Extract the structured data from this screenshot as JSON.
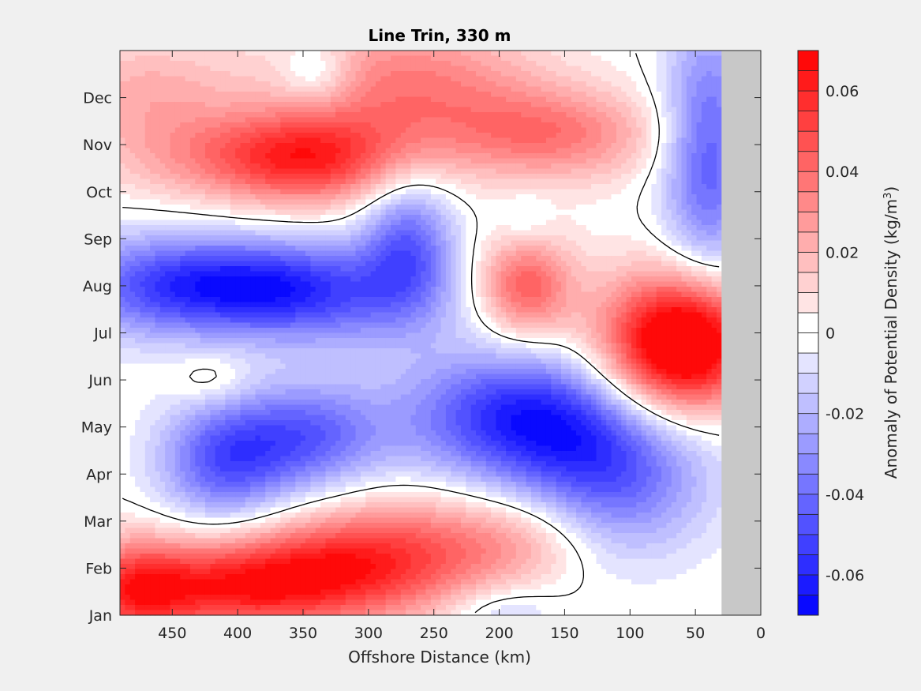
{
  "chart_data": {
    "type": "heatmap",
    "title": "Line Trin, 330 m",
    "xlabel": "Offshore Distance (km)",
    "xlim": [
      490,
      0
    ],
    "x_ticks": [
      450,
      400,
      350,
      300,
      250,
      200,
      150,
      100,
      50,
      0
    ],
    "y_ticks": [
      {
        "value": 1,
        "label": "Jan"
      },
      {
        "value": 2,
        "label": "Feb"
      },
      {
        "value": 3,
        "label": "Mar"
      },
      {
        "value": 4,
        "label": "Apr"
      },
      {
        "value": 5,
        "label": "May"
      },
      {
        "value": 6,
        "label": "Jun"
      },
      {
        "value": 7,
        "label": "Jul"
      },
      {
        "value": 8,
        "label": "Aug"
      },
      {
        "value": 9,
        "label": "Sep"
      },
      {
        "value": 10,
        "label": "Oct"
      },
      {
        "value": 11,
        "label": "Nov"
      },
      {
        "value": 12,
        "label": "Dec"
      }
    ],
    "ylim": [
      1,
      13
    ],
    "no_data_region": {
      "x_from": 30,
      "x_to": 0,
      "color": "#c8c8c8"
    },
    "zero_contour": true,
    "colorbar": {
      "label_main": "Anomaly of Potential Density (kg/m",
      "label_sup": "3",
      "label_close": ")",
      "range": [
        -0.07,
        0.07
      ],
      "levels": 28,
      "ticks": [
        {
          "value": 0.06,
          "label": "0.06"
        },
        {
          "value": 0.04,
          "label": "0.04"
        },
        {
          "value": 0.02,
          "label": "0.02"
        },
        {
          "value": 0,
          "label": "0"
        },
        {
          "value": -0.02,
          "label": "-0.02"
        },
        {
          "value": -0.04,
          "label": "-0.04"
        },
        {
          "value": -0.06,
          "label": "-0.06"
        }
      ],
      "positive_color": "#ff0000",
      "negative_color": "#0000ff",
      "zero_color": "#ffffff"
    },
    "anomaly_features": [
      {
        "x": 350,
        "y": 10.7,
        "value": 0.058,
        "sx": 55,
        "sy": 0.7
      },
      {
        "x": 270,
        "y": 12.3,
        "value": 0.035,
        "sx": 70,
        "sy": 1.0
      },
      {
        "x": 160,
        "y": 11.2,
        "value": 0.035,
        "sx": 60,
        "sy": 0.7
      },
      {
        "x": 470,
        "y": 12.2,
        "value": 0.02,
        "sx": 50,
        "sy": 0.8
      },
      {
        "x": 450,
        "y": 10.8,
        "value": 0.015,
        "sx": 50,
        "sy": 0.7
      },
      {
        "x": 340,
        "y": 12.5,
        "value": -0.02,
        "sx": 20,
        "sy": 0.5
      },
      {
        "x": 180,
        "y": 8.0,
        "value": 0.045,
        "sx": 25,
        "sy": 0.8
      },
      {
        "x": 50,
        "y": 6.8,
        "value": 0.07,
        "sx": 35,
        "sy": 1.0
      },
      {
        "x": 90,
        "y": 6.5,
        "value": 0.04,
        "sx": 40,
        "sy": 1.2
      },
      {
        "x": 390,
        "y": 8.0,
        "value": -0.05,
        "sx": 60,
        "sy": 0.7
      },
      {
        "x": 470,
        "y": 8.0,
        "value": -0.03,
        "sx": 50,
        "sy": 0.8
      },
      {
        "x": 270,
        "y": 8.9,
        "value": -0.04,
        "sx": 25,
        "sy": 1.0
      },
      {
        "x": 320,
        "y": 7.7,
        "value": -0.025,
        "sx": 60,
        "sy": 0.8
      },
      {
        "x": 180,
        "y": 5.2,
        "value": -0.06,
        "sx": 65,
        "sy": 1.0
      },
      {
        "x": 110,
        "y": 4.0,
        "value": -0.04,
        "sx": 50,
        "sy": 1.2
      },
      {
        "x": 40,
        "y": 10.8,
        "value": -0.045,
        "sx": 25,
        "sy": 2.0
      },
      {
        "x": 410,
        "y": 4.3,
        "value": -0.045,
        "sx": 35,
        "sy": 0.9
      },
      {
        "x": 345,
        "y": 4.8,
        "value": -0.04,
        "sx": 40,
        "sy": 0.8
      },
      {
        "x": 420,
        "y": 6.0,
        "value": 0.012,
        "sx": 20,
        "sy": 0.4
      },
      {
        "x": 410,
        "y": 1.6,
        "value": 0.055,
        "sx": 60,
        "sy": 0.7
      },
      {
        "x": 330,
        "y": 2.0,
        "value": 0.04,
        "sx": 50,
        "sy": 0.8
      },
      {
        "x": 260,
        "y": 2.3,
        "value": 0.035,
        "sx": 50,
        "sy": 0.9
      },
      {
        "x": 180,
        "y": 2.6,
        "value": 0.02,
        "sx": 40,
        "sy": 0.7
      },
      {
        "x": 200,
        "y": 1.1,
        "value": -0.015,
        "sx": 30,
        "sy": 0.4
      },
      {
        "x": 480,
        "y": 1.5,
        "value": 0.04,
        "sx": 30,
        "sy": 0.8
      },
      {
        "x": 180,
        "y": 9.3,
        "value": -0.01,
        "sx": 15,
        "sy": 0.5
      }
    ]
  }
}
